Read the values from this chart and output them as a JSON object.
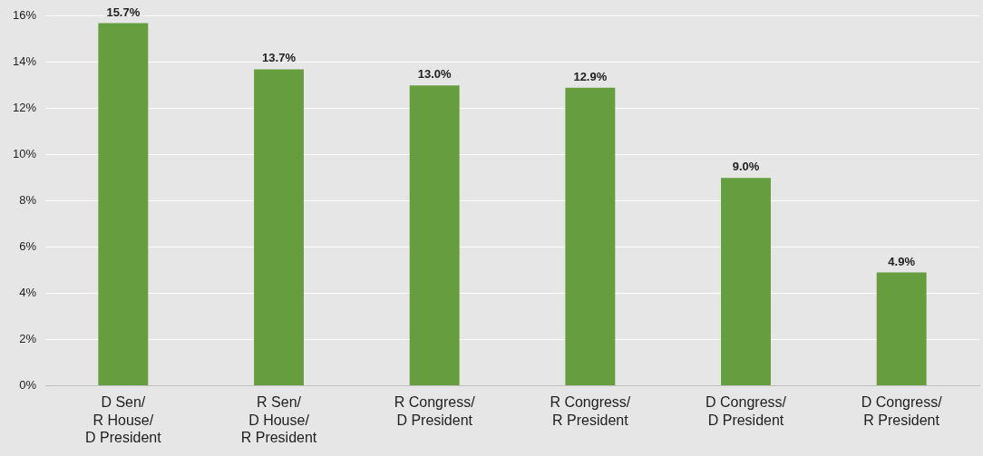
{
  "chart_data": {
    "type": "bar",
    "categories": [
      "D Sen/ R House/ D President",
      "R Sen/ D House/ R President",
      "R Congress/ D President",
      "R Congress/ R President",
      "D Congress/ D President",
      "D Congress/ R President"
    ],
    "values": [
      15.7,
      13.7,
      13.0,
      12.9,
      9.0,
      4.9
    ],
    "value_labels": [
      "15.7%",
      "13.7%",
      "13.0%",
      "12.9%",
      "9.0%",
      "4.9%"
    ],
    "color": "#669e3f",
    "ylim": [
      0,
      16
    ],
    "yticks": [
      {
        "value": 0,
        "label": "0%"
      },
      {
        "value": 2,
        "label": "2%"
      },
      {
        "value": 4,
        "label": "4%"
      },
      {
        "value": 6,
        "label": "6%"
      },
      {
        "value": 8,
        "label": "8%"
      },
      {
        "value": 10,
        "label": "10%"
      },
      {
        "value": 12,
        "label": "12%"
      },
      {
        "value": 14,
        "label": "14%"
      },
      {
        "value": 16,
        "label": "16%"
      }
    ],
    "grid": "y",
    "legend": false
  }
}
